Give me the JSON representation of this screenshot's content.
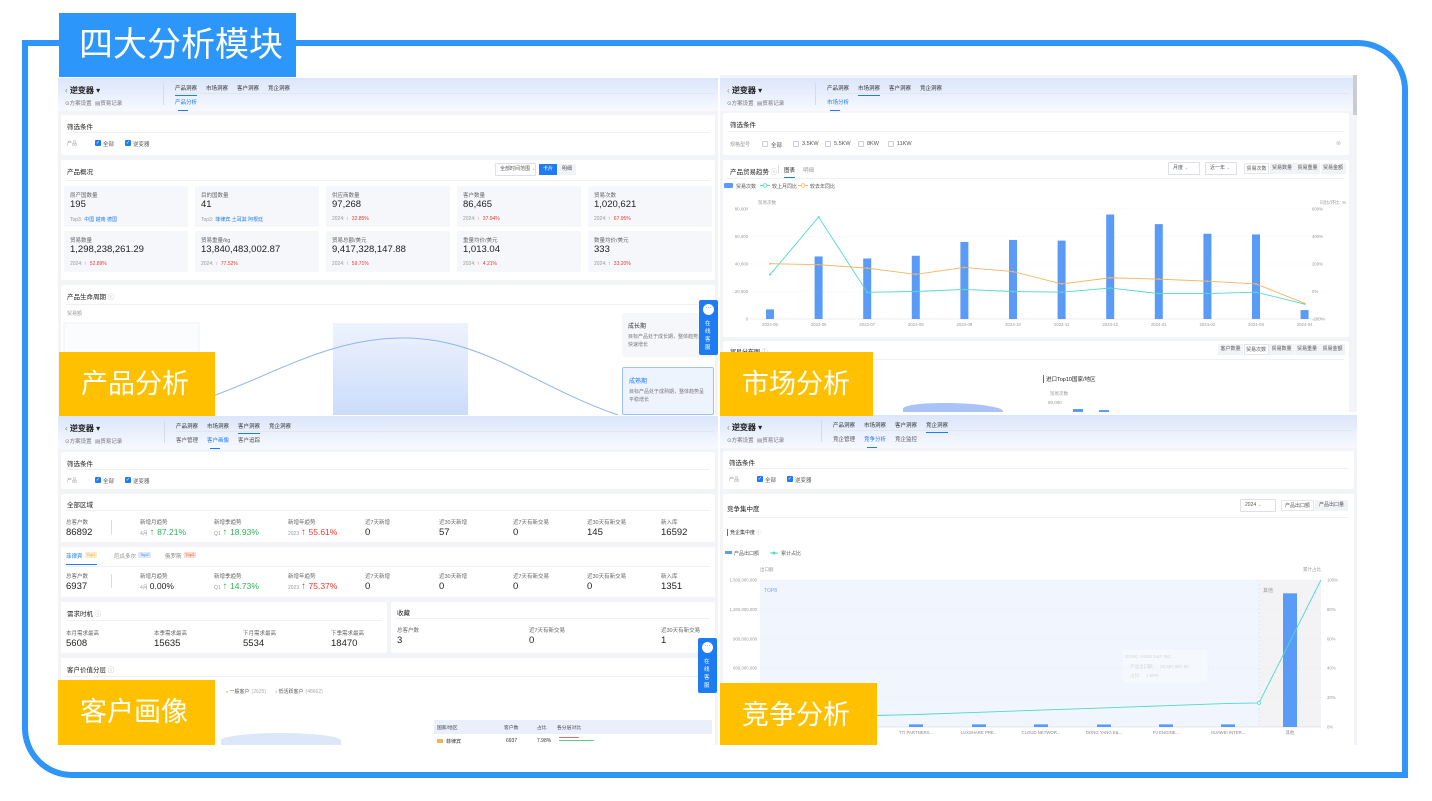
{
  "title": "四大分析模块",
  "labels": {
    "product": "产品分析",
    "market": "市场分析",
    "customer": "客户画像",
    "competition": "竞争分析"
  },
  "colors": {
    "frame": "#2f95f8",
    "title_bg": "#2d96fa",
    "label_bg": "#ffc000",
    "accent": "#1e7cf2",
    "bar": "#5b9bf8",
    "line_mom": "#4fd9c9",
    "line_yoy": "#f5b363",
    "trend_up_red": "#e8382f",
    "trend_up_green": "#2fb35a"
  },
  "common": {
    "product_name": "逆变器",
    "scheme_link": "方案设置",
    "records_link": "贸易记录",
    "tabs": [
      "产品洞察",
      "市场洞察",
      "客户洞察",
      "竞企洞察"
    ],
    "filter_title": "筛选条件",
    "product_label": "产品",
    "all": "全部",
    "chat": [
      "在",
      "线",
      "客",
      "服"
    ]
  },
  "product": {
    "subtabs": [
      "产品分析"
    ],
    "overview": {
      "title": "产品概况",
      "time_range": "全部时间范围",
      "view_buttons": [
        "卡片",
        "明细"
      ],
      "cards": [
        {
          "label": "原产国数量",
          "value": "195",
          "note_label": "Top3:",
          "note_value": "中国 越南 德国",
          "trend": "link"
        },
        {
          "label": "目的国数量",
          "value": "41",
          "note_label": "Top3:",
          "note_value": "菲律宾 土耳其 阿根廷",
          "trend": "link"
        },
        {
          "label": "供应商数量",
          "value": "97,268",
          "note_label": "2024:",
          "note_value": "32.85%",
          "trend": "up"
        },
        {
          "label": "客户数量",
          "value": "86,465",
          "note_label": "2024:",
          "note_value": "37.94%",
          "trend": "up"
        },
        {
          "label": "贸易次数",
          "value": "1,020,621",
          "note_label": "2024:",
          "note_value": "67.95%",
          "trend": "up"
        },
        {
          "label": "贸易数量",
          "value": "1,298,238,261.29",
          "note_label": "2024:",
          "note_value": "52.89%",
          "trend": "up"
        },
        {
          "label": "贸易重量/kg",
          "value": "13,840,483,002.87",
          "note_label": "2024:",
          "note_value": "77.52%",
          "trend": "up"
        },
        {
          "label": "贸易总额/美元",
          "value": "9,417,328,147.88",
          "note_label": "2024:",
          "note_value": "59.71%",
          "trend": "up"
        },
        {
          "label": "重量均价/美元",
          "value": "1,013.04",
          "note_label": "2024:",
          "note_value": "4.21%",
          "trend": "up"
        },
        {
          "label": "数量均价/美元",
          "value": "333",
          "note_label": "2024:",
          "note_value": "33.20%",
          "trend": "up"
        }
      ]
    },
    "lifecycle": {
      "title": "产品生命周期",
      "axis_label": "贸易额",
      "stages": [
        {
          "name": "成长期",
          "desc": "目标产品处于成长期，整体趋势呈快速增长",
          "active": false
        },
        {
          "name": "成熟期",
          "desc": "目标产品处于成熟期，整体趋势呈平稳增长",
          "active": true
        }
      ]
    }
  },
  "market": {
    "subtabs": [
      "市场分析"
    ],
    "spec_label": "规格型号",
    "spec_options": [
      "全部",
      "3.5KW",
      "5.5KW",
      "8KW",
      "11KW"
    ],
    "trend": {
      "title": "产品贸易趋势",
      "views": [
        "图表",
        "明细"
      ],
      "period": "月度",
      "range": "近一年",
      "metrics": [
        "贸易次数",
        "贸易数量",
        "贸易重量",
        "贸易金额"
      ],
      "active_metric": "贸易次数"
    },
    "distribution": {
      "title": "贸易分布图",
      "metrics": [
        "客户数量",
        "贸易次数",
        "贸易数量",
        "贸易重量",
        "贸易金额"
      ],
      "active_metric": "贸易次数",
      "chart_title": "进口Top10国家/地区",
      "axis_label": "贸易次数",
      "top_tick": "80,000"
    }
  },
  "customer": {
    "subtabs": [
      "客户管理",
      "客户画像",
      "客户追踪"
    ],
    "all_region": {
      "title": "全部区域",
      "metrics": [
        {
          "label": "总客户数",
          "value": "86892"
        },
        {
          "label": "新增月趋势",
          "prefix": "4月",
          "value": "87.21%",
          "trend": "up-green"
        },
        {
          "label": "新增季趋势",
          "prefix": "Q1",
          "value": "18.93%",
          "trend": "up-green"
        },
        {
          "label": "新增年趋势",
          "prefix": "2023",
          "value": "55.61%",
          "trend": "up-red"
        },
        {
          "label": "近7天新增",
          "value": "0"
        },
        {
          "label": "近30天新增",
          "value": "57"
        },
        {
          "label": "近7天有新交易",
          "value": "0"
        },
        {
          "label": "近30天有新交易",
          "value": "145"
        },
        {
          "label": "新入库",
          "value": "16592"
        }
      ]
    },
    "country_tabs": [
      {
        "name": "菲律宾",
        "badge": "Top1"
      },
      {
        "name": "厄瓜多尔",
        "badge": "Top2"
      },
      {
        "name": "俄罗斯",
        "badge": "Top3"
      }
    ],
    "country": {
      "metrics": [
        {
          "label": "总客户数",
          "value": "6937"
        },
        {
          "label": "新增月趋势",
          "prefix": "4月",
          "value": "0.00%",
          "trend": "none"
        },
        {
          "label": "新增季趋势",
          "prefix": "Q1",
          "value": "14.73%",
          "trend": "up-green"
        },
        {
          "label": "新增年趋势",
          "prefix": "2023",
          "value": "75.37%",
          "trend": "up-red"
        },
        {
          "label": "近7天新增",
          "value": "0"
        },
        {
          "label": "近30天新增",
          "value": "0"
        },
        {
          "label": "近7天有新交易",
          "value": "0"
        },
        {
          "label": "近30天有新交易",
          "value": "0"
        },
        {
          "label": "新入库",
          "value": "1351"
        }
      ]
    },
    "demand": {
      "title": "需求时机",
      "metrics": [
        {
          "label": "本月需求最高",
          "value": "5608"
        },
        {
          "label": "本季需求最高",
          "value": "15635"
        },
        {
          "label": "下月需求最高",
          "value": "5534"
        },
        {
          "label": "下季需求最高",
          "value": "18470"
        }
      ]
    },
    "favorites": {
      "title": "收藏",
      "metrics": [
        {
          "label": "总客户数",
          "value": "3"
        },
        {
          "label": "近7天有新交易",
          "value": "0"
        },
        {
          "label": "近30天有新交易",
          "value": "1"
        }
      ]
    },
    "value_tiers": {
      "title": "客户价值分层",
      "legend": [
        {
          "name": "一般客户",
          "count": "(2625)",
          "color": "#f5b363"
        },
        {
          "name": "低活跃客户",
          "count": "(48662)",
          "color": "#c7ccd6"
        }
      ],
      "table": {
        "headers": [
          "国家/地区",
          "客户数",
          "占比",
          "各分层对比"
        ],
        "rows": [
          {
            "country": "菲律宾",
            "count": "6937",
            "share": "7.98%"
          }
        ]
      }
    }
  },
  "competition": {
    "subtabs": [
      "竞企管理",
      "竞争分析",
      "竞企监控"
    ],
    "concentration": {
      "title": "竞争集中度",
      "year": "2024",
      "buttons": [
        "产品出口额",
        "产品出口量"
      ],
      "sub_title": "竞企集中度",
      "top_label": "TOP8",
      "other_label": "其他",
      "tooltip": {
        "company": "DONG YANG E&P INC.",
        "value_label": "产品出口额:",
        "value": "25,997,987.96",
        "share_label": "占比:",
        "share": "1.59%"
      }
    }
  },
  "chart_data": [
    {
      "id": "market-trend",
      "type": "bar+line",
      "categories": [
        "2023-05",
        "2023-06",
        "2023-07",
        "2023-08",
        "2023-09",
        "2023-10",
        "2023-11",
        "2023-12",
        "2024-01",
        "2024-02",
        "2024-03",
        "2024-04"
      ],
      "ylabel": "贸易次数",
      "ylabel_right": "同比/环比: %",
      "ylim": [
        0,
        80000
      ],
      "ylim_right": [
        -200,
        600
      ],
      "yticks": [
        "0",
        "20,000",
        "40,000",
        "60,000",
        "80,000"
      ],
      "yticks_right": [
        "-200%",
        "0%",
        "200%",
        "400%",
        "600%"
      ],
      "legend_placement": "top-left",
      "grid": true,
      "series": [
        {
          "name": "贸易次数",
          "type": "bar",
          "axis": "left",
          "values": [
            7000,
            45500,
            44000,
            46000,
            56000,
            57500,
            57000,
            76000,
            69000,
            62000,
            61500,
            6500
          ]
        },
        {
          "name": "较上月同比",
          "type": "line",
          "axis": "right",
          "values": [
            122,
            542,
            -6,
            0,
            15,
            0,
            -5,
            25,
            -15,
            -15,
            -5,
            -91
          ]
        },
        {
          "name": "较去年同比",
          "type": "line",
          "axis": "right",
          "values": [
            202,
            195,
            170,
            125,
            175,
            145,
            55,
            100,
            90,
            75,
            55,
            -86
          ]
        }
      ]
    },
    {
      "id": "competition-concentration",
      "type": "bar+line",
      "categories": [
        "TTI PARTNERS...",
        "LUXSHARE PRE...",
        "CLOUD NETWOR...",
        "DONG YANG E&...",
        "PJ ENGINE...",
        "HUAWEI INTER...",
        "其他"
      ],
      "ylabel": "出口额",
      "ylabel_right": "累计占比",
      "ylim": [
        0,
        1500000000
      ],
      "ylim_right": [
        0,
        100
      ],
      "yticks": [
        "600,000,000",
        "900,000,000",
        "1,200,000,000",
        "1,500,000,000"
      ],
      "yticks_right": [
        "0%",
        "20%",
        "40%",
        "60%",
        "80%",
        "100%"
      ],
      "legend_placement": "top-left",
      "grid": true,
      "series": [
        {
          "name": "产品出口额",
          "type": "bar",
          "axis": "left",
          "values": [
            27000000,
            27000000,
            27000000,
            25997988,
            27000000,
            27000000,
            1364000000
          ]
        },
        {
          "name": "累计占比",
          "type": "line",
          "axis": "right",
          "values": [
            8.5,
            10,
            11.5,
            13,
            14.5,
            16,
            100
          ]
        }
      ]
    }
  ]
}
